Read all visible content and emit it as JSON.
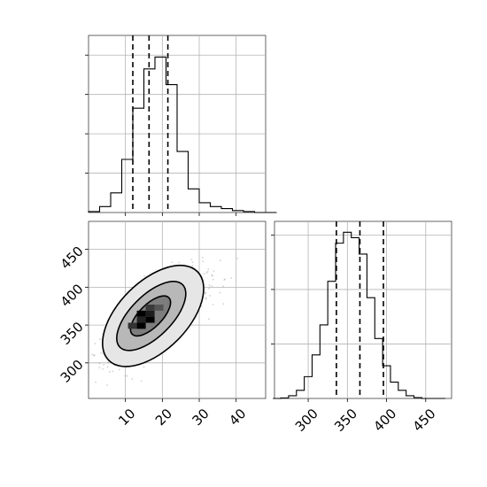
{
  "chart_data": [
    {
      "type": "histogram",
      "panel": "marginal-x",
      "x": [
        0,
        3,
        6,
        9,
        12,
        15,
        18,
        21,
        24,
        27,
        30,
        33,
        36,
        39,
        42,
        45,
        48
      ],
      "values": [
        0.005,
        0.03,
        0.1,
        0.27,
        0.53,
        0.73,
        0.79,
        0.65,
        0.31,
        0.12,
        0.05,
        0.03,
        0.02,
        0.01,
        0.005,
        0.0,
        0.0
      ],
      "xlim": [
        0,
        48
      ],
      "ylim": [
        0,
        0.9
      ],
      "quantiles": [
        12.0,
        16.4,
        21.5
      ],
      "grid": true,
      "xlabel": "",
      "ylabel": ""
    },
    {
      "type": "histogram",
      "panel": "marginal-y",
      "x": [
        255,
        265,
        275,
        285,
        295,
        305,
        315,
        325,
        335,
        345,
        355,
        365,
        375,
        385,
        395,
        405,
        415,
        425,
        435,
        445,
        455,
        465
      ],
      "values": [
        0.0,
        0.002,
        0.01,
        0.03,
        0.08,
        0.16,
        0.27,
        0.43,
        0.57,
        0.61,
        0.59,
        0.53,
        0.37,
        0.22,
        0.12,
        0.06,
        0.03,
        0.01,
        0.003,
        0.0,
        0.0,
        0.0
      ],
      "xlim": [
        257,
        483
      ],
      "ylim": [
        0,
        0.65
      ],
      "xticks": [
        "300",
        "350",
        "400",
        "450"
      ],
      "quantiles": [
        336,
        366,
        396
      ],
      "grid": true,
      "xlabel": "",
      "ylabel": ""
    },
    {
      "type": "heatmap",
      "panel": "joint",
      "note": "2D density with contours",
      "xlim": [
        0,
        48
      ],
      "ylim": [
        253,
        487
      ],
      "xticks": [
        "10",
        "20",
        "30",
        "40"
      ],
      "yticks": [
        "300",
        "350",
        "400",
        "450"
      ],
      "contours": [
        {
          "level": "outer",
          "center": [
            17.5,
            362
          ],
          "a": 17,
          "b": 15,
          "angle_deg": 45
        },
        {
          "level": "middle",
          "center": [
            17.0,
            362
          ],
          "a": 12,
          "b": 9,
          "angle_deg": 45
        },
        {
          "level": "inner",
          "center": [
            16.8,
            362
          ],
          "a": 7,
          "b": 5,
          "angle_deg": 45
        }
      ],
      "density_peak": [
        15.5,
        355
      ],
      "grid": true,
      "xlabel": "",
      "ylabel": ""
    }
  ]
}
